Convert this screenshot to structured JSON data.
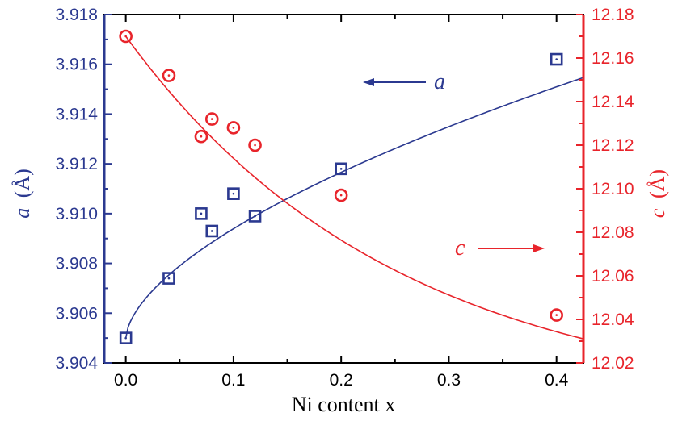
{
  "colors": {
    "a_series": "#2b3990",
    "c_series": "#e8242b",
    "axis": "#000000"
  },
  "chart_data": {
    "type": "scatter",
    "xlabel": "Ni content x",
    "x_range": [
      -0.02,
      0.425
    ],
    "x_ticks": [
      "0.0",
      "0.1",
      "0.2",
      "0.3",
      "0.4"
    ],
    "left_axis": {
      "label_symbol": "a",
      "label_unit": "(Å)",
      "range": [
        3.904,
        3.918
      ],
      "ticks": [
        "3.904",
        "3.906",
        "3.908",
        "3.910",
        "3.912",
        "3.914",
        "3.916",
        "3.918"
      ]
    },
    "right_axis": {
      "label_symbol": "c",
      "label_unit": "(Å)",
      "range": [
        12.02,
        12.18
      ],
      "ticks": [
        "12.02",
        "12.04",
        "12.06",
        "12.08",
        "12.10",
        "12.12",
        "12.14",
        "12.16",
        "12.18"
      ]
    },
    "series": [
      {
        "axis": "left",
        "marker": "square",
        "points": [
          {
            "x": 0.0,
            "y": 3.905
          },
          {
            "x": 0.04,
            "y": 3.9074
          },
          {
            "x": 0.07,
            "y": 3.91
          },
          {
            "x": 0.08,
            "y": 3.9093
          },
          {
            "x": 0.1,
            "y": 3.9108
          },
          {
            "x": 0.12,
            "y": 3.9099
          },
          {
            "x": 0.2,
            "y": 3.9118
          },
          {
            "x": 0.4,
            "y": 3.9162
          }
        ],
        "fit": {
          "x_start": 0.0,
          "x_end": 0.425,
          "model": "y = 3.905 + 0.01749*x^0.6"
        }
      },
      {
        "axis": "right",
        "marker": "circle",
        "points": [
          {
            "x": 0.0,
            "y": 12.17
          },
          {
            "x": 0.04,
            "y": 12.152
          },
          {
            "x": 0.07,
            "y": 12.124
          },
          {
            "x": 0.08,
            "y": 12.132
          },
          {
            "x": 0.1,
            "y": 12.128
          },
          {
            "x": 0.12,
            "y": 12.12
          },
          {
            "x": 0.2,
            "y": 12.097
          },
          {
            "x": 0.4,
            "y": 12.042
          }
        ],
        "fit": {
          "x_start": 0.0,
          "x_end": 0.425,
          "model": "y = 12.0 + 0.17*exp(-x/0.25)"
        }
      }
    ],
    "annotations": [
      {
        "text": "a",
        "arrow": "left",
        "series_axis": "left"
      },
      {
        "text": "c",
        "arrow": "right",
        "series_axis": "right"
      }
    ],
    "grid": false,
    "legend": "none"
  }
}
